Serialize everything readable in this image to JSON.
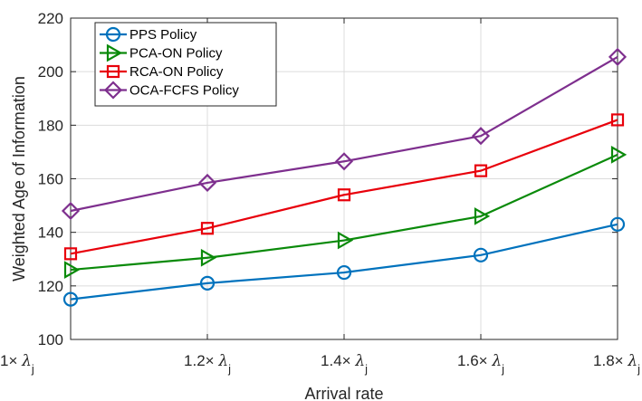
{
  "chart_data": {
    "type": "line",
    "title": "",
    "xlabel": "Arrival rate",
    "ylabel": "Weighted Age of Information",
    "categories": [
      "1×",
      "1.2×",
      "1.4×",
      "1.6×",
      "1.8×"
    ],
    "x_tick_labels": [
      {
        "prefix": "1×",
        "sym": "λ",
        "sub": "j"
      },
      {
        "prefix": "1.2×",
        "sym": "λ",
        "sub": "j"
      },
      {
        "prefix": "1.4×",
        "sym": "λ",
        "sub": "j"
      },
      {
        "prefix": "1.6×",
        "sym": "λ",
        "sub": "j"
      },
      {
        "prefix": "1.8×",
        "sym": "λ",
        "sub": "j"
      }
    ],
    "ylim": [
      100,
      220
    ],
    "yticks": [
      100,
      120,
      140,
      160,
      180,
      200,
      220
    ],
    "grid": true,
    "legend_position": "top-left",
    "series": [
      {
        "name": "PPS Policy",
        "color": "#0072BD",
        "marker": "circle",
        "values": [
          115,
          121,
          125,
          131.5,
          143
        ]
      },
      {
        "name": "PCA-ON Policy",
        "color": "#0A8A0A",
        "marker": "triangle-right",
        "values": [
          126,
          130.5,
          137,
          146,
          169
        ]
      },
      {
        "name": "RCA-ON Policy",
        "color": "#E8000B",
        "marker": "square",
        "values": [
          132,
          141.5,
          154,
          163,
          182
        ]
      },
      {
        "name": "OCA-FCFS Policy",
        "color": "#7E2F8E",
        "marker": "diamond",
        "values": [
          148,
          158.5,
          166.5,
          176,
          205.5
        ]
      }
    ]
  }
}
